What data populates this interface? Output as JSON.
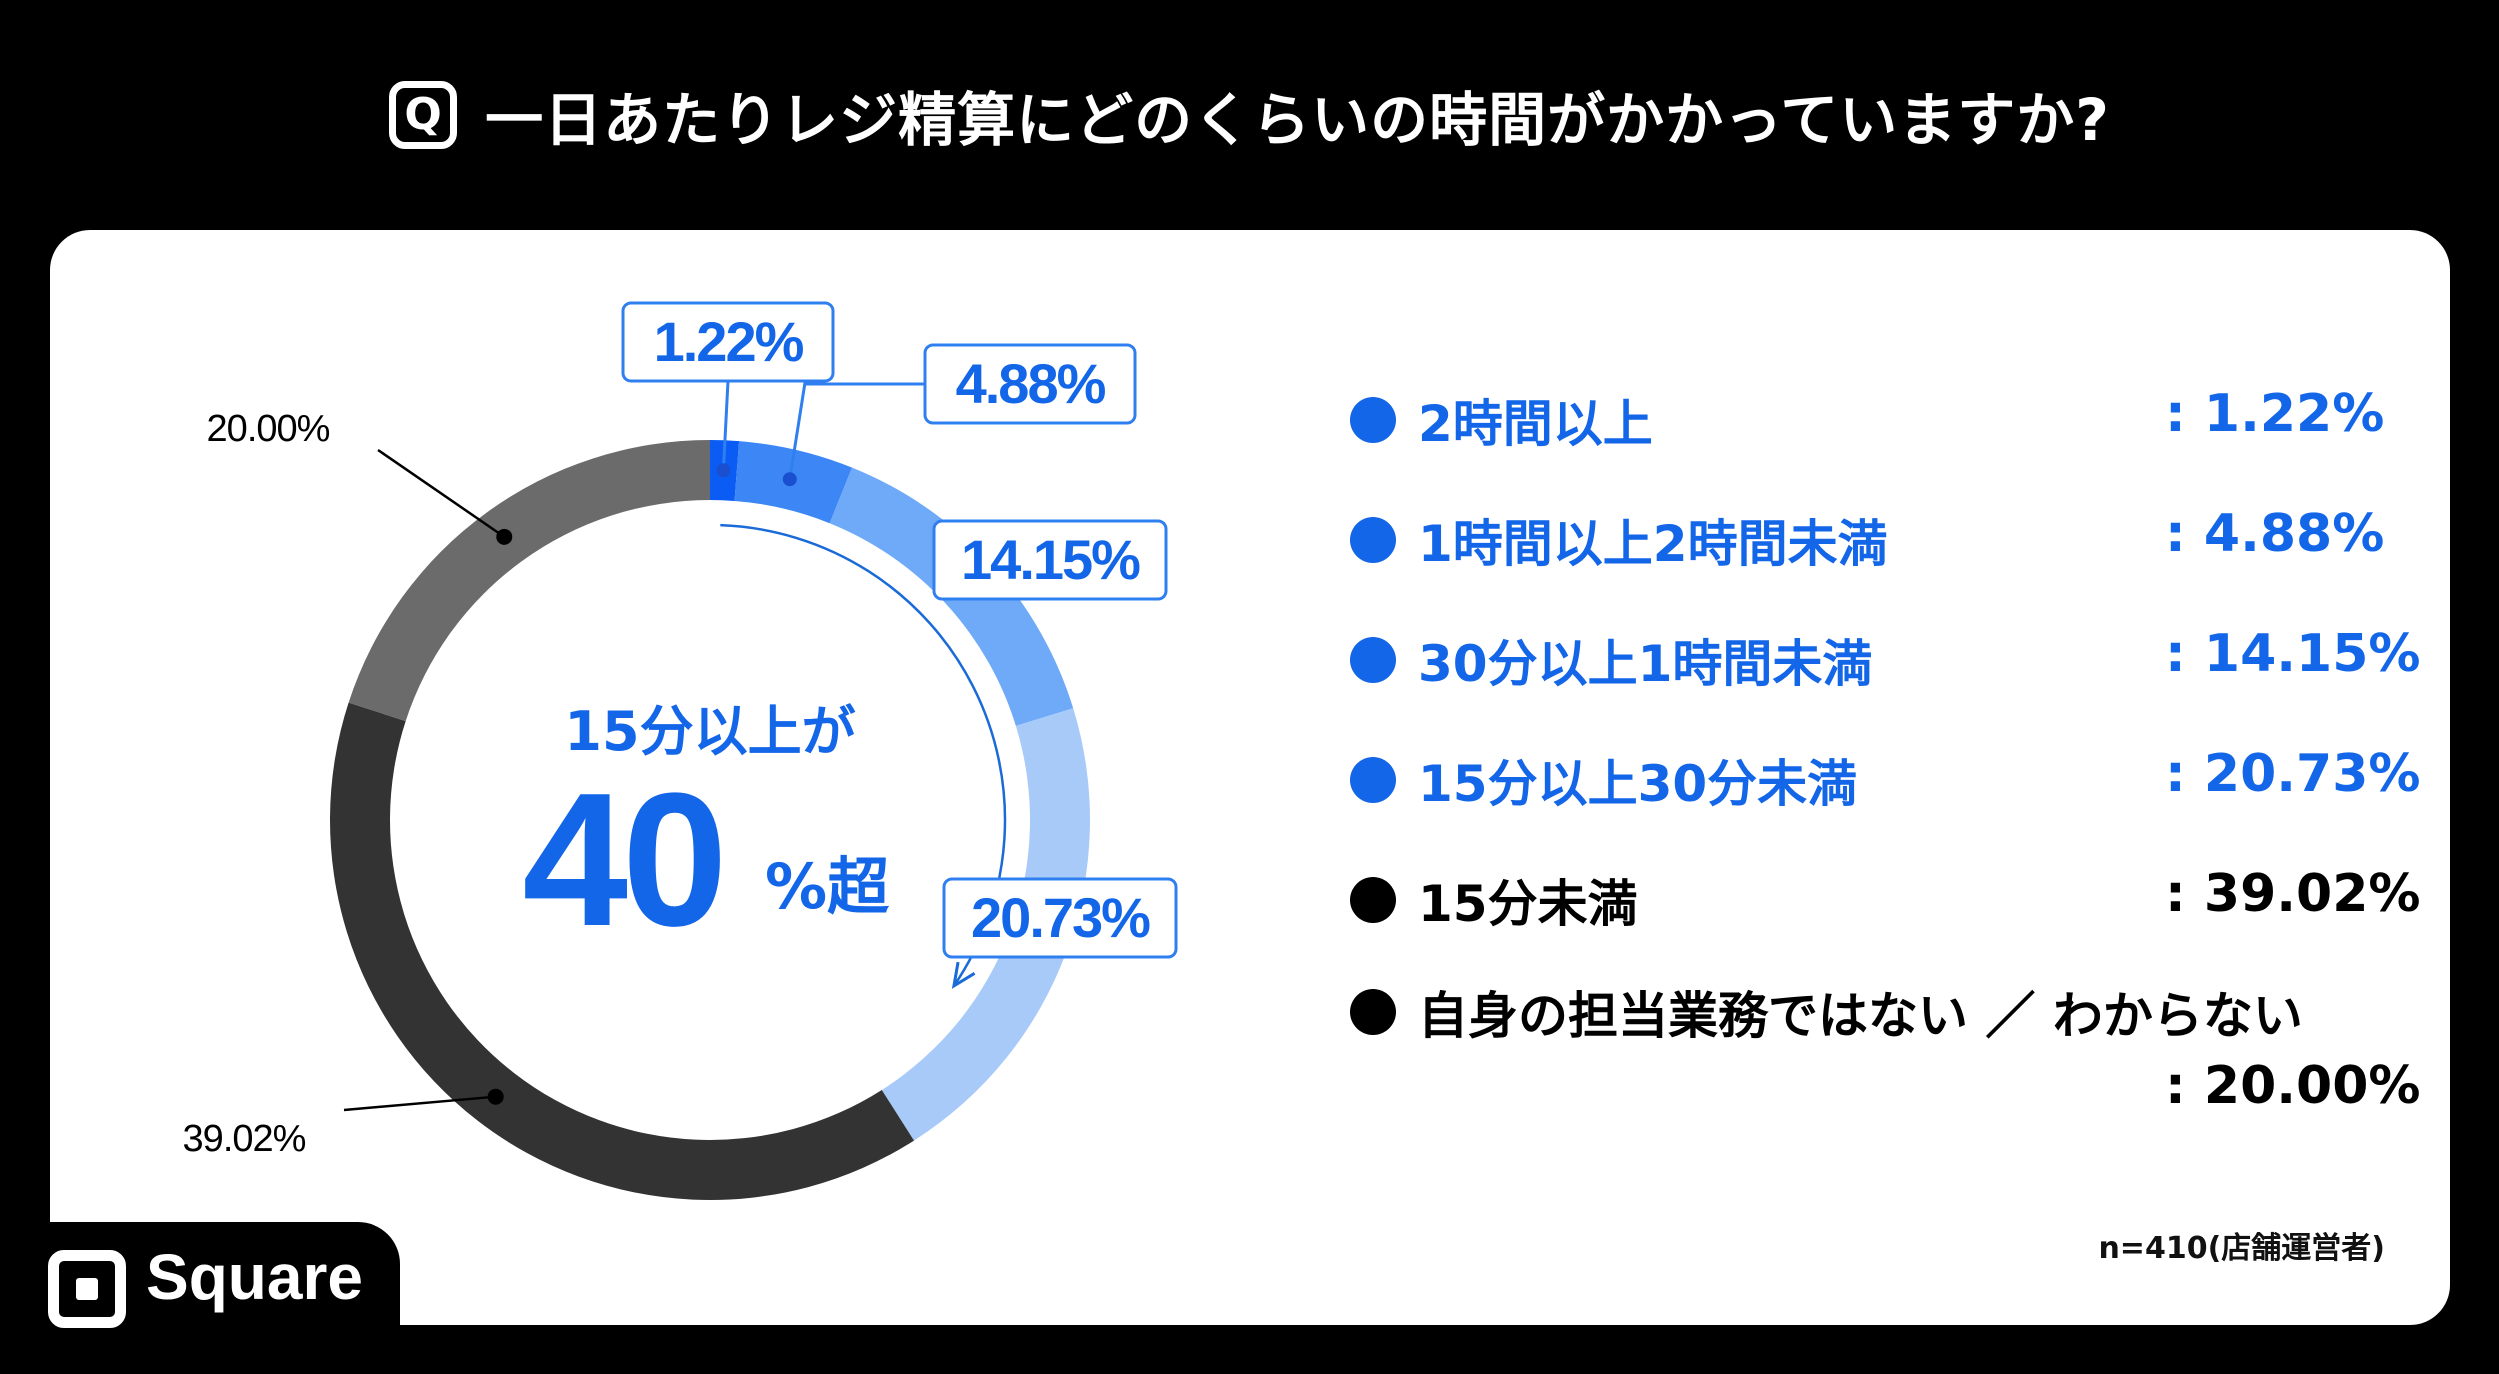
{
  "header": {
    "badge": "Q",
    "title": "一日あたりレジ精算にどのくらいの時間がかかっていますか?"
  },
  "colors": {
    "blue_text": "#1366e8",
    "label_border": "#2f7ff0"
  },
  "chart_data": {
    "type": "pie",
    "variant": "donut",
    "categories": [
      "2時間以上",
      "1時間以上2時間未満",
      "30分以上1時間未満",
      "15分以上30分未満",
      "15分未満",
      "自身の担当業務ではない ／ わからない"
    ],
    "values": [
      1.22,
      4.88,
      14.15,
      20.73,
      39.02,
      20.0
    ],
    "unit": "%",
    "colors": [
      "#0a5cf5",
      "#3d86f5",
      "#6eaaf8",
      "#a8caf9",
      "#333333",
      "#6b6b6b"
    ],
    "slice_labels": [
      "1.22%",
      "4.88%",
      "14.15%",
      "20.73%",
      "39.02%",
      "20.00%"
    ],
    "center_text": {
      "line1": "15分以上が",
      "big": "40",
      "suffix": "%超"
    }
  },
  "legend": [
    {
      "label": "2時間以上",
      "value": ": 1.22%",
      "dot_color": "#1366e8",
      "text_color": "#1366e8"
    },
    {
      "label": "1時間以上2時間未満",
      "value": ": 4.88%",
      "dot_color": "#1366e8",
      "text_color": "#1366e8"
    },
    {
      "label": "30分以上1時間未満",
      "value": ": 14.15%",
      "dot_color": "#1366e8",
      "text_color": "#1366e8"
    },
    {
      "label": "15分以上30分未満",
      "value": ": 20.73%",
      "dot_color": "#1366e8",
      "text_color": "#1366e8"
    },
    {
      "label": "15分未満",
      "value": ": 39.02%",
      "dot_color": "#000000",
      "text_color": "#000000"
    },
    {
      "label": "自身の担当業務ではない ／ わからない",
      "value": ": 20.00%",
      "dot_color": "#000000",
      "text_color": "#000000"
    }
  ],
  "footnote": "n=410(店舗運営者)",
  "brand": {
    "name": "Square",
    "icon": "square-logo-icon"
  }
}
